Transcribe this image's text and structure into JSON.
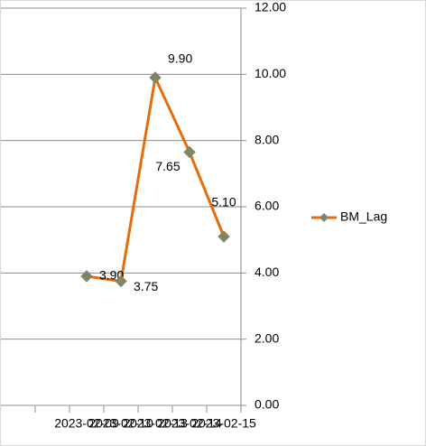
{
  "chart_data": {
    "type": "line",
    "categories": [
      null,
      null,
      "2023-02-09",
      "2023-02-10",
      "2023-02-13",
      "2023-02-14",
      "2023-02-15"
    ],
    "series": [
      {
        "name": "BM_Lag",
        "color": "#e46c0a",
        "marker_color": "#7f8566",
        "values": [
          null,
          null,
          3.9,
          3.75,
          9.9,
          7.65,
          5.1
        ],
        "value_labels": [
          null,
          null,
          "3.90",
          "3.75",
          "9.90",
          "7.65",
          "5.10"
        ]
      }
    ],
    "ylim": [
      0,
      12
    ],
    "yticks": [
      {
        "value": 0,
        "label": "0.00"
      },
      {
        "value": 2,
        "label": "2.00"
      },
      {
        "value": 4,
        "label": "4.00"
      },
      {
        "value": 6,
        "label": "6.00"
      },
      {
        "value": 8,
        "label": "8.00"
      },
      {
        "value": 10,
        "label": "10.00"
      },
      {
        "value": 12,
        "label": "12.00"
      }
    ],
    "grid": true,
    "legend": "right"
  }
}
